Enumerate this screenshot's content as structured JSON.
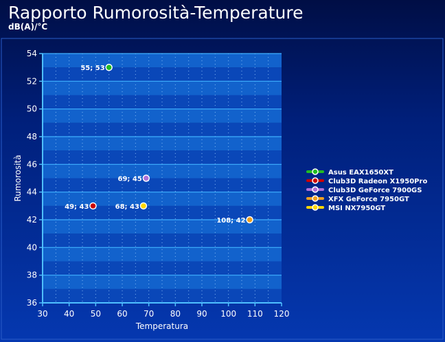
{
  "title": "Rapporto Rumorosità-Temperature",
  "subtitle": "dB(A)/°C",
  "chart_data": {
    "type": "scatter",
    "xlabel": "Temperatura",
    "ylabel": "Rumorosità",
    "xlim": [
      30,
      120
    ],
    "ylim": [
      36,
      54
    ],
    "xticks": [
      30,
      40,
      50,
      60,
      70,
      80,
      90,
      100,
      110,
      120
    ],
    "yticks": [
      36,
      38,
      40,
      42,
      44,
      46,
      48,
      50,
      52,
      54
    ],
    "grid": true,
    "legend_position": "right",
    "series": [
      {
        "name": "Asus EAX1650XT",
        "color": "#22bb22",
        "x": 55,
        "y": 53,
        "label": "55; 53"
      },
      {
        "name": "Club3D Radeon X1950Pro",
        "color": "#cc0000",
        "x": 49,
        "y": 43,
        "label": "49; 43"
      },
      {
        "name": "Club3D GeForce 7900GS",
        "color": "#b070d8",
        "x": 69,
        "y": 45,
        "label": "69; 45"
      },
      {
        "name": "XFX GeForce 7950GT",
        "color": "#f0a020",
        "x": 108,
        "y": 42,
        "label": "108; 42"
      },
      {
        "name": "MSI NX7950GT",
        "color": "#ffd700",
        "x": 68,
        "y": 43,
        "label": "68; 43"
      }
    ]
  }
}
